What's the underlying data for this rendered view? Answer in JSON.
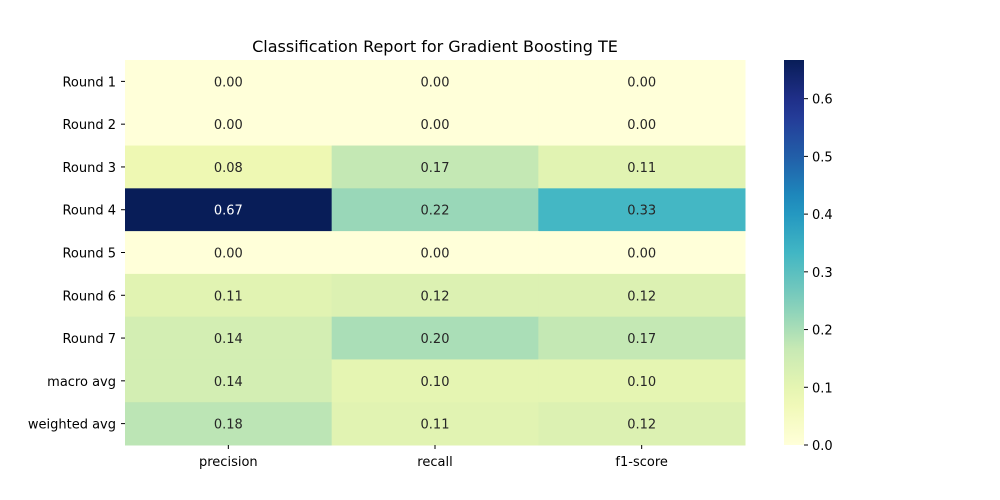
{
  "chart_data": {
    "type": "heatmap",
    "title": "Classification Report for Gradient Boosting TE",
    "xlabel": "",
    "ylabel": "",
    "columns": [
      "precision",
      "recall",
      "f1-score"
    ],
    "rows": [
      "Round 1",
      "Round 2",
      "Round 3",
      "Round 4",
      "Round 5",
      "Round 6",
      "Round 7",
      "macro avg",
      "weighted avg"
    ],
    "values": [
      [
        0.0,
        0.0,
        0.0
      ],
      [
        0.0,
        0.0,
        0.0
      ],
      [
        0.08,
        0.17,
        0.11
      ],
      [
        0.67,
        0.22,
        0.33
      ],
      [
        0.0,
        0.0,
        0.0
      ],
      [
        0.11,
        0.12,
        0.12
      ],
      [
        0.14,
        0.2,
        0.17
      ],
      [
        0.14,
        0.1,
        0.1
      ],
      [
        0.18,
        0.11,
        0.12
      ]
    ],
    "colormap": "YlGnBu",
    "vmin": 0.0,
    "vmax": 0.667,
    "annotation_format": "0.00",
    "colorbar_ticks": [
      "0.0",
      "0.1",
      "0.2",
      "0.3",
      "0.4",
      "0.5",
      "0.6"
    ],
    "colorbar_tick_values": [
      0.0,
      0.1,
      0.2,
      0.3,
      0.4,
      0.5,
      0.6
    ]
  }
}
